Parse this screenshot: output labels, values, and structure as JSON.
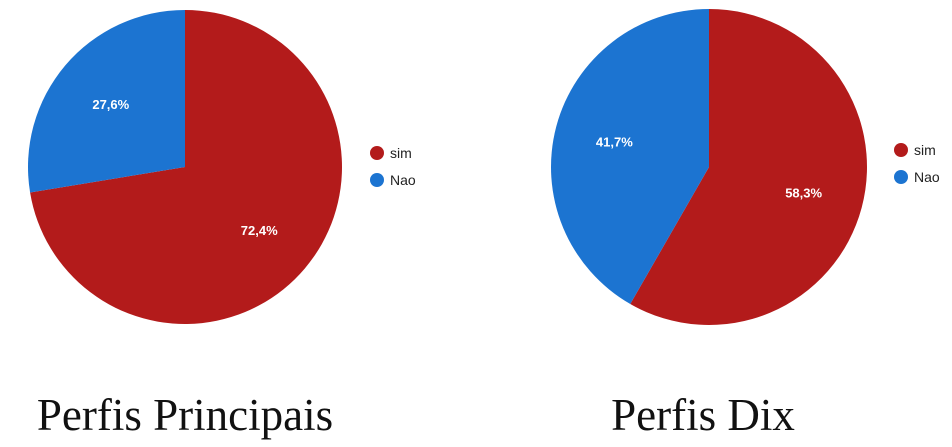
{
  "colors": {
    "sim": "#b31b1b",
    "nao": "#1c74d1"
  },
  "chart_data": [
    {
      "type": "pie",
      "caption": "Perfis Principais",
      "legend_position": "right",
      "series": [
        {
          "name": "sim",
          "value": 72.4,
          "label": "72,4%",
          "color": "#b31b1b"
        },
        {
          "name": "Nao",
          "value": 27.6,
          "label": "27,6%",
          "color": "#1c74d1"
        }
      ]
    },
    {
      "type": "pie",
      "caption": "Perfis Dix",
      "legend_position": "right",
      "series": [
        {
          "name": "sim",
          "value": 58.3,
          "label": "58,3%",
          "color": "#b31b1b"
        },
        {
          "name": "Nao",
          "value": 41.7,
          "label": "41,7%",
          "color": "#1c74d1"
        }
      ]
    }
  ]
}
